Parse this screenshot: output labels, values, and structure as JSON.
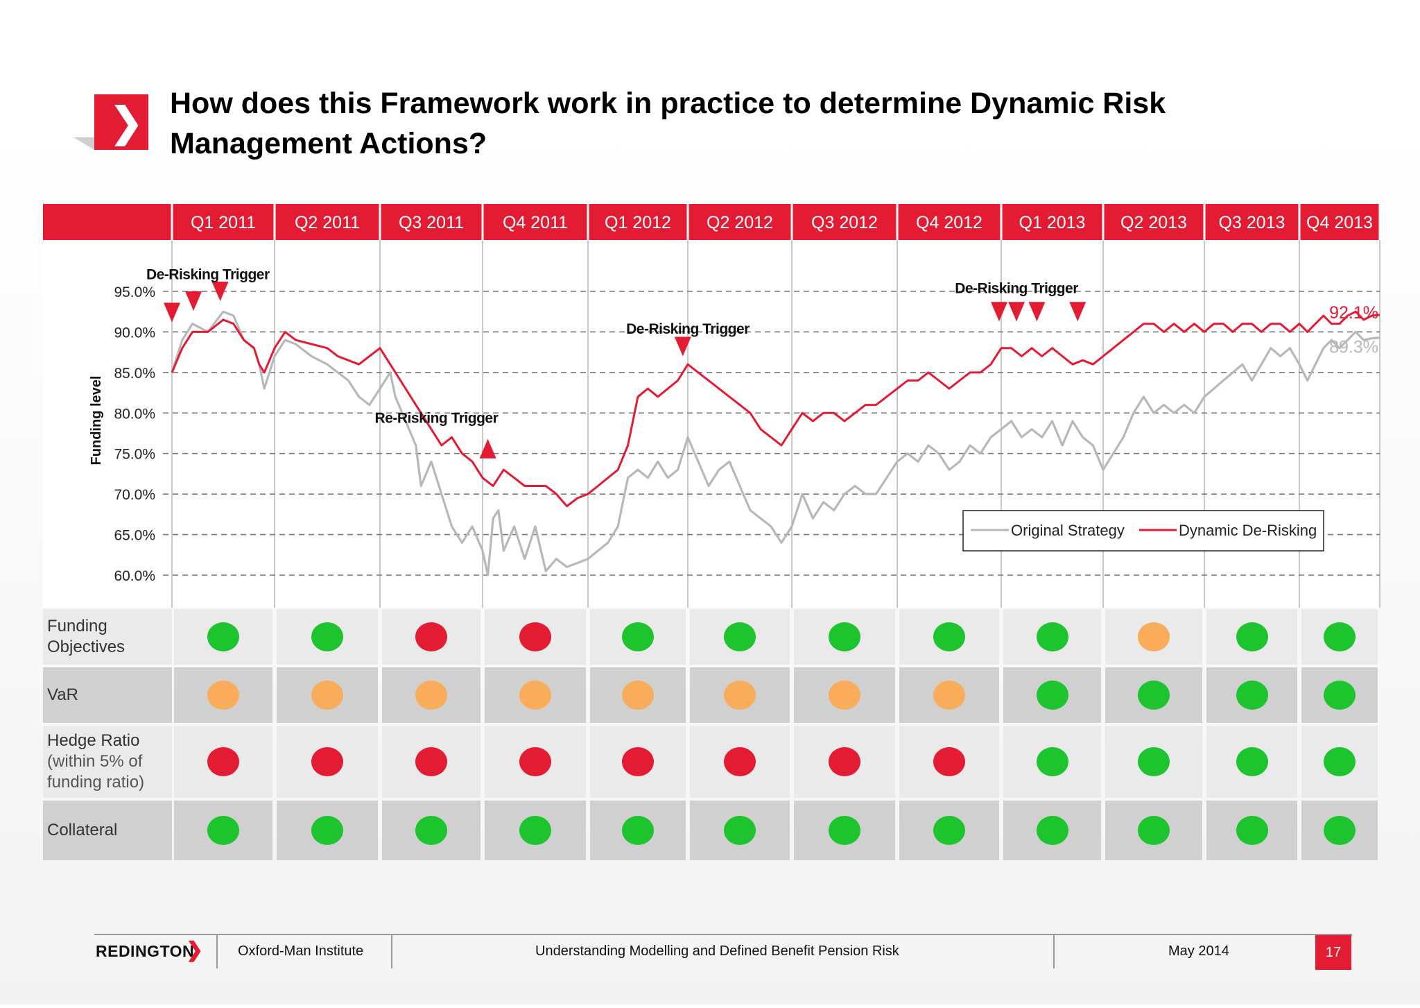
{
  "slide": {
    "title": "How does this Framework work in practice to determine Dynamic Risk Management Actions?",
    "footer": {
      "brand": "REDINGTON",
      "institute": "Oxford-Man Institute",
      "subject": "Understanding Modelling and Defined Benefit Pension Risk",
      "date": "May 2014",
      "page": "17"
    },
    "colors": {
      "brand_red": "#e31b33",
      "status_green": "#1ec42e",
      "status_amber": "#f9ad5a",
      "status_red": "#e31b33",
      "original_line": "#b8b8b8",
      "dynamic_line": "#e31b33"
    }
  },
  "quarters": [
    "Q1 2011",
    "Q2 2011",
    "Q3 2011",
    "Q4 2011",
    "Q1 2012",
    "Q2 2012",
    "Q3 2012",
    "Q4 2012",
    "Q1 2013",
    "Q2 2013",
    "Q3 2013",
    "Q4 2013"
  ],
  "chart_data": {
    "type": "line",
    "ylabel": "Funding level",
    "xlabel": "",
    "ylim": [
      60,
      97
    ],
    "yticks": [
      "95.0%",
      "90.0%",
      "85.0%",
      "80.0%",
      "75.0%",
      "70.0%",
      "65.0%",
      "60.0%"
    ],
    "ytick_values": [
      95,
      90,
      85,
      80,
      75,
      70,
      65,
      60
    ],
    "grid": true,
    "legend_position": "bottom-right",
    "x_unit": "quarter index (0 = start of Q1 2011, 12 = end of Q4 2013)",
    "series": [
      {
        "name": "Original Strategy",
        "points": [
          [
            0,
            85
          ],
          [
            0.1,
            89
          ],
          [
            0.2,
            91
          ],
          [
            0.35,
            90
          ],
          [
            0.5,
            92.5
          ],
          [
            0.6,
            92
          ],
          [
            0.7,
            89
          ],
          [
            0.8,
            88
          ],
          [
            0.85,
            86
          ],
          [
            0.9,
            83
          ],
          [
            1.0,
            87
          ],
          [
            1.1,
            89
          ],
          [
            1.2,
            88.5
          ],
          [
            1.35,
            87
          ],
          [
            1.5,
            86
          ],
          [
            1.6,
            85
          ],
          [
            1.7,
            84
          ],
          [
            1.8,
            82
          ],
          [
            1.9,
            81
          ],
          [
            2.0,
            83
          ],
          [
            2.1,
            85
          ],
          [
            2.15,
            82
          ],
          [
            2.25,
            79
          ],
          [
            2.35,
            76
          ],
          [
            2.4,
            71
          ],
          [
            2.5,
            74
          ],
          [
            2.6,
            70
          ],
          [
            2.7,
            66
          ],
          [
            2.8,
            64
          ],
          [
            2.9,
            66
          ],
          [
            3.0,
            63
          ],
          [
            3.05,
            60
          ],
          [
            3.1,
            67
          ],
          [
            3.15,
            68
          ],
          [
            3.2,
            63
          ],
          [
            3.3,
            66
          ],
          [
            3.4,
            62
          ],
          [
            3.5,
            66
          ],
          [
            3.6,
            60.5
          ],
          [
            3.7,
            62
          ],
          [
            3.8,
            61
          ],
          [
            3.9,
            61.5
          ],
          [
            4.0,
            62
          ],
          [
            4.1,
            63
          ],
          [
            4.2,
            64
          ],
          [
            4.3,
            66
          ],
          [
            4.35,
            69
          ],
          [
            4.4,
            72
          ],
          [
            4.5,
            73
          ],
          [
            4.6,
            72
          ],
          [
            4.7,
            74
          ],
          [
            4.8,
            72
          ],
          [
            4.9,
            73
          ],
          [
            5.0,
            77
          ],
          [
            5.1,
            74
          ],
          [
            5.2,
            71
          ],
          [
            5.3,
            73
          ],
          [
            5.4,
            74
          ],
          [
            5.5,
            71
          ],
          [
            5.6,
            68
          ],
          [
            5.7,
            67
          ],
          [
            5.8,
            66
          ],
          [
            5.9,
            64
          ],
          [
            6.0,
            66
          ],
          [
            6.1,
            70
          ],
          [
            6.2,
            67
          ],
          [
            6.3,
            69
          ],
          [
            6.4,
            68
          ],
          [
            6.5,
            70
          ],
          [
            6.6,
            71
          ],
          [
            6.7,
            70
          ],
          [
            6.8,
            70
          ],
          [
            6.9,
            72
          ],
          [
            7.0,
            74
          ],
          [
            7.1,
            75
          ],
          [
            7.2,
            74
          ],
          [
            7.3,
            76
          ],
          [
            7.4,
            75
          ],
          [
            7.5,
            73
          ],
          [
            7.6,
            74
          ],
          [
            7.7,
            76
          ],
          [
            7.8,
            75
          ],
          [
            7.9,
            77
          ],
          [
            8.0,
            78
          ],
          [
            8.1,
            79
          ],
          [
            8.2,
            77
          ],
          [
            8.3,
            78
          ],
          [
            8.4,
            77
          ],
          [
            8.5,
            79
          ],
          [
            8.6,
            76
          ],
          [
            8.7,
            79
          ],
          [
            8.8,
            77
          ],
          [
            8.9,
            76
          ],
          [
            9.0,
            73
          ],
          [
            9.1,
            75
          ],
          [
            9.2,
            77
          ],
          [
            9.3,
            80
          ],
          [
            9.4,
            82
          ],
          [
            9.5,
            80
          ],
          [
            9.6,
            81
          ],
          [
            9.7,
            80
          ],
          [
            9.8,
            81
          ],
          [
            9.9,
            80
          ],
          [
            10.0,
            82
          ],
          [
            10.1,
            83
          ],
          [
            10.2,
            84
          ],
          [
            10.3,
            85
          ],
          [
            10.4,
            86
          ],
          [
            10.5,
            84
          ],
          [
            10.6,
            86
          ],
          [
            10.7,
            88
          ],
          [
            10.8,
            87
          ],
          [
            10.9,
            88
          ],
          [
            11.0,
            86
          ],
          [
            11.1,
            84
          ],
          [
            11.2,
            86
          ],
          [
            11.3,
            88
          ],
          [
            11.4,
            89
          ],
          [
            11.5,
            88
          ],
          [
            11.6,
            89
          ],
          [
            11.7,
            90
          ],
          [
            11.8,
            89
          ],
          [
            11.9,
            89.2
          ],
          [
            12.0,
            89.3
          ]
        ]
      },
      {
        "name": "Dynamic De-Risking",
        "points": [
          [
            0,
            85
          ],
          [
            0.1,
            88
          ],
          [
            0.2,
            90
          ],
          [
            0.35,
            90
          ],
          [
            0.5,
            91.5
          ],
          [
            0.6,
            91
          ],
          [
            0.7,
            89
          ],
          [
            0.8,
            88
          ],
          [
            0.85,
            86
          ],
          [
            0.9,
            85
          ],
          [
            1.0,
            88
          ],
          [
            1.1,
            90
          ],
          [
            1.2,
            89
          ],
          [
            1.35,
            88.5
          ],
          [
            1.5,
            88
          ],
          [
            1.6,
            87
          ],
          [
            1.7,
            86.5
          ],
          [
            1.8,
            86
          ],
          [
            1.9,
            87
          ],
          [
            2.0,
            88
          ],
          [
            2.1,
            86
          ],
          [
            2.2,
            84
          ],
          [
            2.3,
            82
          ],
          [
            2.4,
            80
          ],
          [
            2.5,
            78
          ],
          [
            2.6,
            76
          ],
          [
            2.7,
            77
          ],
          [
            2.8,
            75
          ],
          [
            2.9,
            74
          ],
          [
            3.0,
            72
          ],
          [
            3.1,
            71
          ],
          [
            3.2,
            73
          ],
          [
            3.3,
            72
          ],
          [
            3.4,
            71
          ],
          [
            3.5,
            71
          ],
          [
            3.6,
            71
          ],
          [
            3.7,
            70
          ],
          [
            3.8,
            68.5
          ],
          [
            3.9,
            69.5
          ],
          [
            4.0,
            70
          ],
          [
            4.1,
            71
          ],
          [
            4.2,
            72
          ],
          [
            4.3,
            73
          ],
          [
            4.4,
            76
          ],
          [
            4.5,
            82
          ],
          [
            4.6,
            83
          ],
          [
            4.7,
            82
          ],
          [
            4.8,
            83
          ],
          [
            4.9,
            84
          ],
          [
            5.0,
            86
          ],
          [
            5.1,
            85
          ],
          [
            5.2,
            84
          ],
          [
            5.3,
            83
          ],
          [
            5.4,
            82
          ],
          [
            5.5,
            81
          ],
          [
            5.6,
            80
          ],
          [
            5.7,
            78
          ],
          [
            5.8,
            77
          ],
          [
            5.9,
            76
          ],
          [
            6.0,
            78
          ],
          [
            6.1,
            80
          ],
          [
            6.2,
            79
          ],
          [
            6.3,
            80
          ],
          [
            6.4,
            80
          ],
          [
            6.5,
            79
          ],
          [
            6.6,
            80
          ],
          [
            6.7,
            81
          ],
          [
            6.8,
            81
          ],
          [
            6.9,
            82
          ],
          [
            7.0,
            83
          ],
          [
            7.1,
            84
          ],
          [
            7.2,
            84
          ],
          [
            7.3,
            85
          ],
          [
            7.4,
            84
          ],
          [
            7.5,
            83
          ],
          [
            7.6,
            84
          ],
          [
            7.7,
            85
          ],
          [
            7.8,
            85
          ],
          [
            7.9,
            86
          ],
          [
            8.0,
            88
          ],
          [
            8.1,
            88
          ],
          [
            8.2,
            87
          ],
          [
            8.3,
            88
          ],
          [
            8.4,
            87
          ],
          [
            8.5,
            88
          ],
          [
            8.6,
            87
          ],
          [
            8.7,
            86
          ],
          [
            8.8,
            86.5
          ],
          [
            8.9,
            86
          ],
          [
            9.0,
            87
          ],
          [
            9.1,
            88
          ],
          [
            9.2,
            89
          ],
          [
            9.3,
            90
          ],
          [
            9.4,
            91
          ],
          [
            9.5,
            91
          ],
          [
            9.6,
            90
          ],
          [
            9.7,
            91
          ],
          [
            9.8,
            90
          ],
          [
            9.9,
            91
          ],
          [
            10.0,
            90
          ],
          [
            10.1,
            91
          ],
          [
            10.2,
            91
          ],
          [
            10.3,
            90
          ],
          [
            10.4,
            91
          ],
          [
            10.5,
            91
          ],
          [
            10.6,
            90
          ],
          [
            10.7,
            91
          ],
          [
            10.8,
            91
          ],
          [
            10.9,
            90
          ],
          [
            11.0,
            91
          ],
          [
            11.1,
            90
          ],
          [
            11.2,
            91
          ],
          [
            11.3,
            92
          ],
          [
            11.4,
            91
          ],
          [
            11.5,
            91
          ],
          [
            11.6,
            92
          ],
          [
            11.7,
            92.5
          ],
          [
            11.8,
            91.5
          ],
          [
            11.9,
            92
          ],
          [
            12.0,
            92.1
          ]
        ]
      }
    ],
    "end_labels": [
      {
        "series": "Dynamic De-Risking",
        "text": "92.1%",
        "y": 92.1
      },
      {
        "series": "Original Strategy",
        "text": "89.3%",
        "y": 89.3
      }
    ],
    "annotations": [
      {
        "text": "De-Risking Trigger",
        "x": 0.35,
        "y": 96.5
      },
      {
        "text": "De-Risking Trigger",
        "x": 5.0,
        "y": 89.8
      },
      {
        "text": "Re-Risking Trigger",
        "x": 2.55,
        "y": 78.8
      },
      {
        "text": "De-Risking Trigger",
        "x": 8.15,
        "y": 94.8
      }
    ],
    "triggers": [
      {
        "type": "de-risk",
        "x": 0.0,
        "y": 92.4
      },
      {
        "type": "de-risk",
        "x": 0.21,
        "y": 93.8
      },
      {
        "type": "de-risk",
        "x": 0.47,
        "y": 95.0
      },
      {
        "type": "re-risk",
        "x": 3.05,
        "y": 75.6
      },
      {
        "type": "de-risk",
        "x": 4.95,
        "y": 88.2
      },
      {
        "type": "de-risk",
        "x": 7.98,
        "y": 92.5
      },
      {
        "type": "de-risk",
        "x": 8.15,
        "y": 92.5
      },
      {
        "type": "de-risk",
        "x": 8.35,
        "y": 92.5
      },
      {
        "type": "de-risk",
        "x": 8.75,
        "y": 92.5
      }
    ]
  },
  "rows": [
    {
      "label": "Funding Objectives",
      "label_lines": [
        "Funding",
        "Objectives"
      ],
      "sub_lines": [],
      "status": [
        "green",
        "green",
        "red",
        "red",
        "green",
        "green",
        "green",
        "green",
        "green",
        "amber",
        "green",
        "green"
      ]
    },
    {
      "label": "VaR",
      "label_lines": [
        "VaR"
      ],
      "sub_lines": [],
      "status": [
        "amber",
        "amber",
        "amber",
        "amber",
        "amber",
        "amber",
        "amber",
        "amber",
        "green",
        "green",
        "green",
        "green"
      ]
    },
    {
      "label": "Hedge Ratio",
      "label_lines": [
        "Hedge Ratio"
      ],
      "sub_lines": [
        "(within 5% of",
        "funding ratio)"
      ],
      "status": [
        "red",
        "red",
        "red",
        "red",
        "red",
        "red",
        "red",
        "red",
        "green",
        "green",
        "green",
        "green"
      ]
    },
    {
      "label": "Collateral",
      "label_lines": [
        "Collateral"
      ],
      "sub_lines": [],
      "status": [
        "green",
        "green",
        "green",
        "green",
        "green",
        "green",
        "green",
        "green",
        "green",
        "green",
        "green",
        "green"
      ]
    }
  ]
}
